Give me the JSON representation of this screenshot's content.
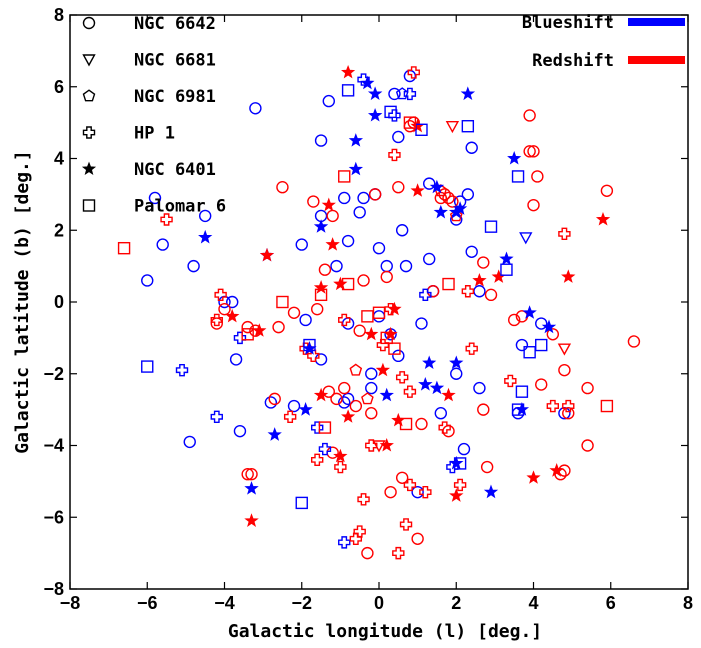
{
  "chart_data": {
    "type": "scatter",
    "xlabel": "Galactic longitude (l)  [deg.]",
    "ylabel": "Galactic latitude (b)  [deg.]",
    "xlim": [
      -8,
      8
    ],
    "ylim": [
      -8,
      8
    ],
    "xticks": [
      -8,
      -6,
      -4,
      -2,
      0,
      2,
      4,
      6,
      8
    ],
    "yticks": [
      -8,
      -6,
      -4,
      -2,
      0,
      2,
      4,
      6,
      8
    ],
    "grid": false,
    "legend_position": "top-left",
    "color_legend_position": "top-right",
    "color_legend": [
      {
        "label": "Blueshift",
        "color": "#0000ff"
      },
      {
        "label": "Redshift",
        "color": "#ff0000"
      }
    ],
    "series": [
      {
        "name": "NGC 6642",
        "marker": "circle",
        "blue": [
          [
            -3.2,
            5.4
          ],
          [
            -1.3,
            5.6
          ],
          [
            -1.5,
            4.5
          ],
          [
            -0.9,
            2.9
          ],
          [
            -0.5,
            2.5
          ],
          [
            -0.1,
            3.0
          ],
          [
            0.5,
            4.6
          ],
          [
            0.4,
            5.8
          ],
          [
            0.8,
            6.3
          ],
          [
            1.3,
            3.3
          ],
          [
            2.1,
            2.8
          ],
          [
            2.4,
            4.3
          ],
          [
            2.3,
            3.0
          ],
          [
            2.0,
            2.3
          ],
          [
            0.6,
            2.0
          ],
          [
            -0.4,
            2.9
          ],
          [
            -0.8,
            1.7
          ],
          [
            -1.1,
            1.0
          ],
          [
            -2.0,
            1.6
          ],
          [
            -1.5,
            2.4
          ],
          [
            -5.8,
            2.9
          ],
          [
            -5.6,
            1.6
          ],
          [
            -6.0,
            0.6
          ],
          [
            -4.5,
            2.4
          ],
          [
            -4.8,
            1.0
          ],
          [
            -4.0,
            0.0
          ],
          [
            -1.9,
            -0.5
          ],
          [
            -1.5,
            -1.6
          ],
          [
            -0.8,
            -0.6
          ],
          [
            0.0,
            -0.4
          ],
          [
            0.3,
            -0.9
          ],
          [
            0.5,
            -1.5
          ],
          [
            -0.2,
            -2.0
          ],
          [
            0.7,
            1.0
          ],
          [
            0.0,
            1.5
          ],
          [
            1.3,
            1.2
          ],
          [
            1.4,
            0.3
          ],
          [
            1.1,
            -0.6
          ],
          [
            2.4,
            1.4
          ],
          [
            2.6,
            0.3
          ],
          [
            4.2,
            -0.6
          ],
          [
            3.7,
            -1.2
          ],
          [
            2.6,
            -2.4
          ],
          [
            2.0,
            -2.0
          ],
          [
            1.6,
            -3.1
          ],
          [
            2.2,
            -4.1
          ],
          [
            3.6,
            -3.1
          ],
          [
            4.8,
            -3.1
          ],
          [
            1.0,
            -5.3
          ],
          [
            -0.8,
            -2.7
          ],
          [
            -2.2,
            -2.9
          ],
          [
            -3.7,
            -1.6
          ],
          [
            -3.6,
            -3.6
          ],
          [
            -4.9,
            -3.9
          ],
          [
            -0.2,
            -2.4
          ],
          [
            -2.8,
            -2.8
          ],
          [
            0.2,
            1.0
          ],
          [
            -3.8,
            0.0
          ],
          [
            -0.9,
            -2.8
          ]
        ],
        "red": [
          [
            -2.5,
            3.2
          ],
          [
            -1.7,
            2.8
          ],
          [
            -1.2,
            2.4
          ],
          [
            -0.1,
            3.0
          ],
          [
            0.5,
            3.2
          ],
          [
            0.9,
            5.0
          ],
          [
            1.7,
            3.0
          ],
          [
            1.8,
            2.9
          ],
          [
            1.9,
            2.8
          ],
          [
            3.9,
            5.2
          ],
          [
            4.0,
            4.2
          ],
          [
            4.1,
            3.5
          ],
          [
            4.0,
            2.7
          ],
          [
            5.9,
            3.1
          ],
          [
            2.7,
            1.1
          ],
          [
            2.9,
            0.2
          ],
          [
            1.4,
            0.3
          ],
          [
            0.2,
            0.7
          ],
          [
            -0.4,
            0.6
          ],
          [
            -1.4,
            0.9
          ],
          [
            -0.5,
            -0.8
          ],
          [
            -1.6,
            -0.2
          ],
          [
            -2.2,
            -0.3
          ],
          [
            -2.6,
            -0.7
          ],
          [
            -3.4,
            -0.7
          ],
          [
            -3.2,
            -0.8
          ],
          [
            -4.0,
            -0.2
          ],
          [
            -4.2,
            -0.6
          ],
          [
            3.5,
            -0.5
          ],
          [
            3.7,
            -0.4
          ],
          [
            4.5,
            -0.9
          ],
          [
            4.8,
            -1.9
          ],
          [
            4.2,
            -2.3
          ],
          [
            5.4,
            -2.4
          ],
          [
            4.9,
            -3.1
          ],
          [
            5.4,
            -4.0
          ],
          [
            4.7,
            -4.8
          ],
          [
            4.8,
            -4.7
          ],
          [
            6.6,
            -1.1
          ],
          [
            2.7,
            -3.0
          ],
          [
            2.8,
            -4.6
          ],
          [
            1.8,
            -3.6
          ],
          [
            1.1,
            -3.4
          ],
          [
            0.6,
            -4.9
          ],
          [
            0.3,
            -5.3
          ],
          [
            1.0,
            -6.6
          ],
          [
            -0.3,
            -7.0
          ],
          [
            -0.6,
            -2.9
          ],
          [
            -1.1,
            -2.7
          ],
          [
            -1.3,
            -2.5
          ],
          [
            -0.9,
            -2.4
          ],
          [
            -0.2,
            -3.1
          ],
          [
            -1.2,
            -4.2
          ],
          [
            -2.7,
            -2.7
          ],
          [
            -3.4,
            -4.8
          ],
          [
            -3.3,
            -4.8
          ],
          [
            3.9,
            4.2
          ],
          [
            0.8,
            4.9
          ],
          [
            1.6,
            2.9
          ]
        ]
      },
      {
        "name": "NGC 6681",
        "marker": "triangle-down",
        "blue": [
          [
            3.8,
            1.8
          ]
        ],
        "red": [
          [
            1.9,
            4.9
          ],
          [
            4.8,
            -1.3
          ],
          [
            0.0,
            -4.0
          ]
        ]
      },
      {
        "name": "NGC 6981",
        "marker": "pentagon",
        "blue": [
          [
            0.6,
            5.8
          ]
        ],
        "red": [
          [
            -0.6,
            -1.9
          ],
          [
            1.6,
            3.1
          ],
          [
            2.0,
            2.4
          ],
          [
            -0.3,
            -2.7
          ]
        ]
      },
      {
        "name": "HP 1",
        "marker": "plus",
        "blue": [
          [
            -0.4,
            6.2
          ],
          [
            0.4,
            5.2
          ],
          [
            0.8,
            5.8
          ],
          [
            -5.1,
            -1.9
          ],
          [
            -4.2,
            -3.2
          ],
          [
            1.9,
            -4.6
          ],
          [
            -0.9,
            -6.7
          ],
          [
            -1.4,
            -4.1
          ],
          [
            -3.6,
            -1.0
          ],
          [
            -1.6,
            -3.5
          ],
          [
            1.2,
            0.2
          ]
        ],
        "red": [
          [
            0.9,
            6.4
          ],
          [
            0.4,
            4.1
          ],
          [
            2.3,
            0.3
          ],
          [
            2.4,
            -1.3
          ],
          [
            4.8,
            1.9
          ],
          [
            3.4,
            -2.2
          ],
          [
            -1.9,
            -1.3
          ],
          [
            -2.3,
            -3.2
          ],
          [
            0.3,
            -0.2
          ],
          [
            -0.9,
            -0.5
          ],
          [
            1.7,
            -3.5
          ],
          [
            1.2,
            -5.3
          ],
          [
            0.8,
            -5.1
          ],
          [
            -0.2,
            -4.0
          ],
          [
            -1.6,
            -4.4
          ],
          [
            -1.0,
            -4.6
          ],
          [
            0.1,
            -1.2
          ],
          [
            4.5,
            -2.9
          ],
          [
            -4.1,
            0.2
          ],
          [
            -4.2,
            -0.5
          ],
          [
            -0.4,
            -5.5
          ],
          [
            -0.6,
            -6.6
          ],
          [
            -0.5,
            -6.4
          ],
          [
            0.7,
            -6.2
          ],
          [
            0.5,
            -7.0
          ],
          [
            2.1,
            -5.1
          ],
          [
            0.8,
            -2.5
          ],
          [
            -5.5,
            2.3
          ],
          [
            -1.7,
            -1.5
          ],
          [
            0.6,
            -2.1
          ],
          [
            4.9,
            -2.9
          ]
        ]
      },
      {
        "name": "NGC 6401",
        "marker": "star",
        "blue": [
          [
            -0.3,
            6.1
          ],
          [
            -0.1,
            5.8
          ],
          [
            -0.6,
            4.5
          ],
          [
            -0.1,
            5.2
          ],
          [
            -0.6,
            3.7
          ],
          [
            1.5,
            3.2
          ],
          [
            1.6,
            2.5
          ],
          [
            2.0,
            2.5
          ],
          [
            2.1,
            2.6
          ],
          [
            2.3,
            5.8
          ],
          [
            3.5,
            4.0
          ],
          [
            3.3,
            1.2
          ],
          [
            3.9,
            -0.3
          ],
          [
            4.4,
            -0.7
          ],
          [
            3.7,
            -3.0
          ],
          [
            2.0,
            -1.7
          ],
          [
            1.2,
            -2.3
          ],
          [
            2.0,
            -4.5
          ],
          [
            2.9,
            -5.3
          ],
          [
            -1.5,
            2.1
          ],
          [
            -1.8,
            -1.3
          ],
          [
            -1.9,
            -3.0
          ],
          [
            -2.7,
            -3.7
          ],
          [
            -3.3,
            -5.2
          ],
          [
            -4.5,
            1.8
          ],
          [
            -2.9,
            1.3
          ],
          [
            1.3,
            -1.7
          ],
          [
            1.5,
            -2.4
          ],
          [
            0.2,
            -2.6
          ]
        ],
        "red": [
          [
            -0.8,
            6.4
          ],
          [
            1.0,
            4.9
          ],
          [
            1.0,
            3.1
          ],
          [
            -1.3,
            2.7
          ],
          [
            -1.2,
            1.6
          ],
          [
            -1.0,
            0.5
          ],
          [
            -1.5,
            0.4
          ],
          [
            0.4,
            -0.2
          ],
          [
            0.3,
            -0.9
          ],
          [
            0.1,
            -1.9
          ],
          [
            -0.2,
            -0.9
          ],
          [
            -0.8,
            -3.2
          ],
          [
            -1.0,
            -4.3
          ],
          [
            -1.5,
            -2.6
          ],
          [
            0.2,
            -4.0
          ],
          [
            0.5,
            -3.3
          ],
          [
            1.8,
            -2.6
          ],
          [
            2.6,
            0.6
          ],
          [
            3.1,
            0.7
          ],
          [
            4.9,
            0.7
          ],
          [
            5.8,
            2.3
          ],
          [
            4.0,
            -4.9
          ],
          [
            2.0,
            -5.4
          ],
          [
            4.6,
            -4.7
          ],
          [
            -3.3,
            -6.1
          ],
          [
            -3.1,
            -0.8
          ],
          [
            -3.8,
            -0.4
          ],
          [
            -2.9,
            1.3
          ]
        ]
      },
      {
        "name": "Palomar 6",
        "marker": "square",
        "blue": [
          [
            -0.8,
            5.9
          ],
          [
            0.3,
            5.3
          ],
          [
            1.1,
            4.8
          ],
          [
            2.3,
            4.9
          ],
          [
            3.6,
            3.5
          ],
          [
            2.9,
            2.1
          ],
          [
            3.3,
            0.9
          ],
          [
            4.2,
            -1.2
          ],
          [
            3.9,
            -1.4
          ],
          [
            3.7,
            -2.5
          ],
          [
            3.6,
            -3.0
          ],
          [
            2.1,
            -4.5
          ],
          [
            -1.8,
            -1.2
          ],
          [
            -2.0,
            -5.6
          ],
          [
            -6.0,
            -1.8
          ]
        ],
        "red": [
          [
            -6.6,
            1.5
          ],
          [
            -2.5,
            0.0
          ],
          [
            -1.5,
            0.2
          ],
          [
            -0.8,
            0.5
          ],
          [
            0.2,
            -1.0
          ],
          [
            0.8,
            5.0
          ],
          [
            1.8,
            0.5
          ],
          [
            5.9,
            -2.9
          ],
          [
            -3.4,
            -0.9
          ],
          [
            -1.4,
            -3.5
          ],
          [
            0.4,
            -1.3
          ],
          [
            0.7,
            -3.4
          ],
          [
            0.0,
            -0.3
          ],
          [
            -0.3,
            -0.4
          ],
          [
            -0.9,
            3.5
          ]
        ]
      }
    ]
  }
}
